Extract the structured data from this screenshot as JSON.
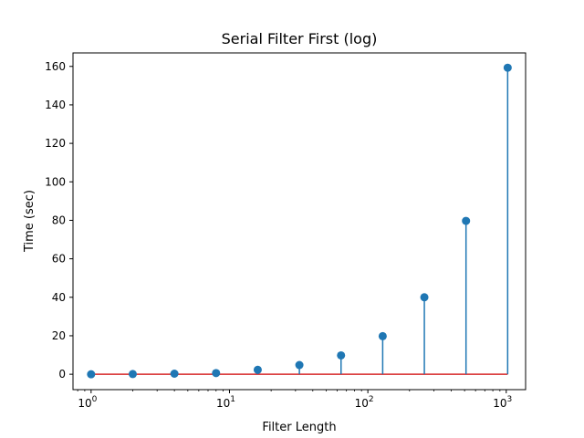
{
  "chart_data": {
    "type": "stem",
    "title": "Serial Filter First (log)",
    "xlabel": "Filter Length",
    "ylabel": "Time (sec)",
    "xscale": "log",
    "xlim": [
      0.74,
      1380
    ],
    "ylim": [
      -8,
      167
    ],
    "x": [
      1,
      2,
      4,
      8,
      16,
      32,
      64,
      128,
      256,
      512,
      1024
    ],
    "y": [
      0.0,
      0.1,
      0.3,
      0.6,
      2.3,
      4.8,
      9.8,
      19.8,
      40.0,
      79.7,
      159.3
    ],
    "baseline": 0,
    "x_ticks": [
      {
        "value": 1,
        "base": "10",
        "exp": "0"
      },
      {
        "value": 10,
        "base": "10",
        "exp": "1"
      },
      {
        "value": 100,
        "base": "10",
        "exp": "2"
      },
      {
        "value": 1000,
        "base": "10",
        "exp": "3"
      }
    ],
    "y_ticks": [
      "0",
      "20",
      "40",
      "60",
      "80",
      "100",
      "120",
      "140",
      "160"
    ],
    "colors": {
      "stem": "#1f77b4",
      "baseline": "#d62728",
      "axes": "#000000"
    },
    "grid": false,
    "legend": false
  }
}
